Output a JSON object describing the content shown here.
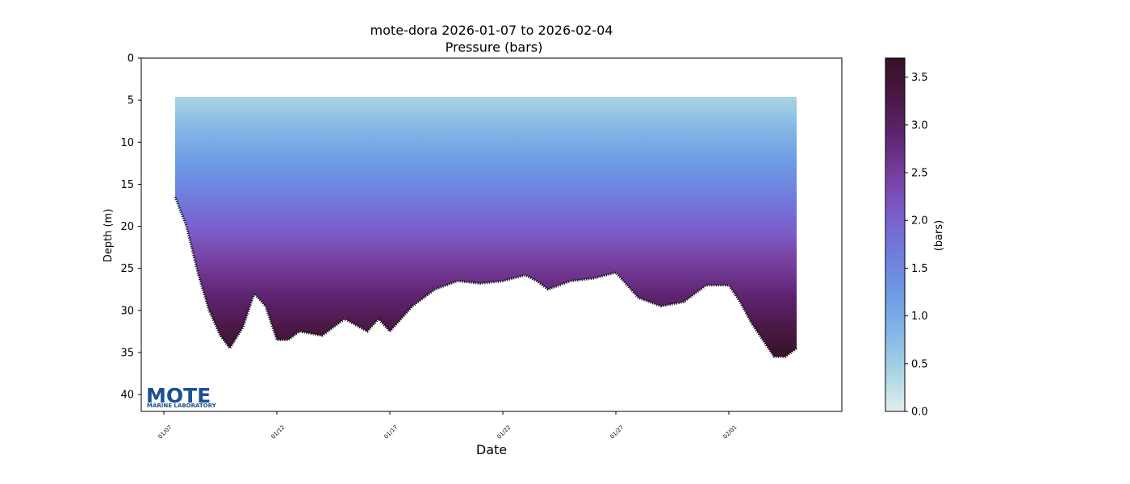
{
  "chart_data": {
    "type": "scatter",
    "title": "mote-dora 2026-01-07 to 2026-02-04",
    "subtitle": "Pressure (bars)",
    "xlabel": "Date",
    "ylabel": "Depth (m)",
    "x_range": [
      "2026-01-06",
      "2026-02-06"
    ],
    "ylim": [
      42,
      0
    ],
    "y_inverted": true,
    "y_ticks": [
      0,
      5,
      10,
      15,
      20,
      25,
      30,
      35,
      40
    ],
    "x_ticks": [
      {
        "date": "2026-01-07",
        "label": "01/07"
      },
      {
        "date": "2026-01-12",
        "label": "01/12"
      },
      {
        "date": "2026-01-17",
        "label": "01/17"
      },
      {
        "date": "2026-01-22",
        "label": "01/22"
      },
      {
        "date": "2026-01-27",
        "label": "01/27"
      },
      {
        "date": "2026-02-01",
        "label": "02/01"
      }
    ],
    "colorbar": {
      "label": "(bars)",
      "range": [
        0,
        3.7
      ],
      "ticks": [
        "0.0",
        "0.5",
        "1.0",
        "1.5",
        "2.0",
        "2.5",
        "3.0",
        "3.5"
      ],
      "colormap": [
        "#e3eeee",
        "#a9d4e3",
        "#84b6e6",
        "#6d9ae4",
        "#6f7ddd",
        "#7b5fcc",
        "#76409f",
        "#5f2472",
        "#4a1845",
        "#361027"
      ]
    },
    "series": [
      {
        "color_by": "pressure",
        "surface_depth_m": 4.6,
        "bottom_profile": [
          {
            "x": "2026-01-07T12:00",
            "y": 16.5
          },
          {
            "x": "2026-01-08T00:00",
            "y": 20.0
          },
          {
            "x": "2026-01-08T12:00",
            "y": 25.5
          },
          {
            "x": "2026-01-09T00:00",
            "y": 30.0
          },
          {
            "x": "2026-01-09T12:00",
            "y": 33.0
          },
          {
            "x": "2026-01-09T22:00",
            "y": 34.5
          },
          {
            "x": "2026-01-10T12:00",
            "y": 32.0
          },
          {
            "x": "2026-01-11T00:00",
            "y": 28.0
          },
          {
            "x": "2026-01-11T12:00",
            "y": 29.5
          },
          {
            "x": "2026-01-12T00:00",
            "y": 33.5
          },
          {
            "x": "2026-01-12T12:00",
            "y": 33.5
          },
          {
            "x": "2026-01-13T00:00",
            "y": 32.5
          },
          {
            "x": "2026-01-14T00:00",
            "y": 33.0
          },
          {
            "x": "2026-01-15T00:00",
            "y": 31.0
          },
          {
            "x": "2026-01-16T00:00",
            "y": 32.5
          },
          {
            "x": "2026-01-16T12:00",
            "y": 31.0
          },
          {
            "x": "2026-01-17T00:00",
            "y": 32.5
          },
          {
            "x": "2026-01-18T00:00",
            "y": 29.5
          },
          {
            "x": "2026-01-19T00:00",
            "y": 27.5
          },
          {
            "x": "2026-01-20T00:00",
            "y": 26.5
          },
          {
            "x": "2026-01-21T00:00",
            "y": 26.8
          },
          {
            "x": "2026-01-22T00:00",
            "y": 26.5
          },
          {
            "x": "2026-01-23T00:00",
            "y": 25.8
          },
          {
            "x": "2026-01-23T12:00",
            "y": 26.5
          },
          {
            "x": "2026-01-24T00:00",
            "y": 27.5
          },
          {
            "x": "2026-01-25T00:00",
            "y": 26.5
          },
          {
            "x": "2026-01-26T00:00",
            "y": 26.2
          },
          {
            "x": "2026-01-27T00:00",
            "y": 25.5
          },
          {
            "x": "2026-01-28T00:00",
            "y": 28.5
          },
          {
            "x": "2026-01-29T00:00",
            "y": 29.5
          },
          {
            "x": "2026-01-30T00:00",
            "y": 29.0
          },
          {
            "x": "2026-01-31T00:00",
            "y": 27.0
          },
          {
            "x": "2026-02-01T00:00",
            "y": 27.0
          },
          {
            "x": "2026-02-01T12:00",
            "y": 29.0
          },
          {
            "x": "2026-02-02T00:00",
            "y": 31.5
          },
          {
            "x": "2026-02-02T12:00",
            "y": 33.5
          },
          {
            "x": "2026-02-03T00:00",
            "y": 35.5
          },
          {
            "x": "2026-02-03T12:00",
            "y": 35.5
          },
          {
            "x": "2026-02-04T00:00",
            "y": 34.5
          }
        ]
      }
    ],
    "logo": {
      "name": "MOTE",
      "tagline": "MARINE LABORATORY"
    }
  }
}
